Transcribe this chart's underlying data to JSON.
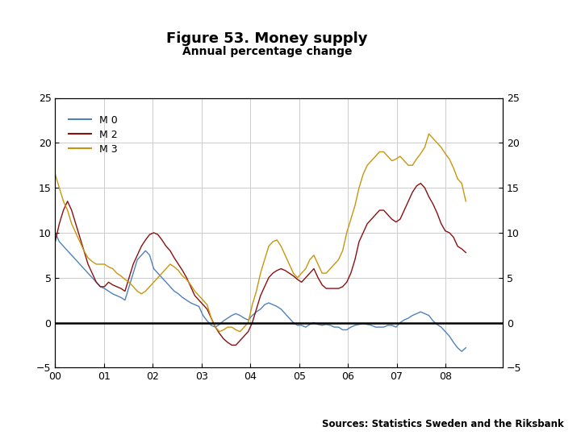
{
  "title": "Figure 53. Money supply",
  "subtitle": "Annual percentage change",
  "source_text": "Sources: Statistics Sweden and the Riksbank",
  "legend": [
    "M 0",
    "M 2",
    "M 3"
  ],
  "colors": {
    "M0": "#4f81bd",
    "M2": "#8B1010",
    "M3": "#C8960C"
  },
  "xlim_start": 2000.0,
  "xlim_end": 2009.17,
  "ylim": [
    -5,
    25
  ],
  "yticks": [
    -5,
    0,
    5,
    10,
    15,
    20,
    25
  ],
  "xtick_labels": [
    "00",
    "01",
    "02",
    "03",
    "04",
    "05",
    "06",
    "07",
    "08"
  ],
  "xtick_positions": [
    2000.0,
    2001.0,
    2002.0,
    2003.0,
    2004.0,
    2005.0,
    2006.0,
    2007.0,
    2008.0
  ],
  "footer_bar_color": "#1a3f7a",
  "logo_color": "#1a3f7a",
  "M0": [
    10.0,
    9.0,
    8.5,
    8.0,
    7.5,
    7.0,
    6.5,
    6.0,
    5.5,
    5.0,
    4.5,
    4.0,
    3.8,
    3.5,
    3.2,
    3.0,
    2.8,
    2.5,
    4.0,
    5.5,
    7.0,
    7.5,
    8.0,
    7.5,
    6.0,
    5.5,
    5.0,
    4.5,
    4.0,
    3.5,
    3.2,
    2.8,
    2.5,
    2.2,
    2.0,
    1.8,
    0.8,
    0.2,
    -0.3,
    -0.5,
    -0.2,
    0.2,
    0.5,
    0.8,
    1.0,
    0.8,
    0.5,
    0.3,
    0.8,
    1.2,
    1.5,
    2.0,
    2.2,
    2.0,
    1.8,
    1.5,
    1.0,
    0.5,
    0.0,
    -0.3,
    -0.3,
    -0.5,
    -0.2,
    0.0,
    -0.2,
    -0.3,
    -0.2,
    -0.3,
    -0.5,
    -0.5,
    -0.8,
    -0.8,
    -0.5,
    -0.3,
    -0.2,
    -0.1,
    -0.2,
    -0.3,
    -0.5,
    -0.5,
    -0.5,
    -0.3,
    -0.3,
    -0.5,
    0.0,
    0.3,
    0.5,
    0.8,
    1.0,
    1.2,
    1.0,
    0.8,
    0.2,
    -0.2,
    -0.5,
    -1.0,
    -1.5,
    -2.2,
    -2.8,
    -3.2,
    -2.8
  ],
  "M2": [
    9.0,
    11.0,
    12.5,
    13.5,
    12.5,
    11.0,
    9.5,
    8.0,
    6.5,
    5.5,
    4.5,
    4.0,
    4.0,
    4.5,
    4.2,
    4.0,
    3.8,
    3.5,
    5.0,
    6.5,
    7.5,
    8.5,
    9.2,
    9.8,
    10.0,
    9.8,
    9.2,
    8.5,
    8.0,
    7.2,
    6.5,
    5.8,
    5.0,
    4.0,
    3.0,
    2.5,
    2.0,
    1.5,
    0.5,
    -0.5,
    -1.2,
    -1.8,
    -2.2,
    -2.5,
    -2.5,
    -2.0,
    -1.5,
    -1.0,
    0.0,
    1.5,
    3.0,
    4.0,
    5.0,
    5.5,
    5.8,
    6.0,
    5.8,
    5.5,
    5.2,
    4.8,
    4.5,
    5.0,
    5.5,
    6.0,
    5.0,
    4.2,
    3.8,
    3.8,
    3.8,
    3.8,
    4.0,
    4.5,
    5.5,
    7.0,
    9.0,
    10.0,
    11.0,
    11.5,
    12.0,
    12.5,
    12.5,
    12.0,
    11.5,
    11.2,
    11.5,
    12.5,
    13.5,
    14.5,
    15.2,
    15.5,
    15.0,
    14.0,
    13.2,
    12.2,
    11.0,
    10.2,
    10.0,
    9.5,
    8.5,
    8.2,
    7.8
  ],
  "M3": [
    16.5,
    15.0,
    13.5,
    12.5,
    11.0,
    10.0,
    9.0,
    8.0,
    7.2,
    6.8,
    6.5,
    6.5,
    6.5,
    6.2,
    6.0,
    5.5,
    5.2,
    4.8,
    4.5,
    4.0,
    3.5,
    3.2,
    3.5,
    4.0,
    4.5,
    5.0,
    5.5,
    6.0,
    6.5,
    6.2,
    5.8,
    5.2,
    4.8,
    4.2,
    3.5,
    3.0,
    2.5,
    2.0,
    0.5,
    -0.5,
    -1.0,
    -0.8,
    -0.5,
    -0.5,
    -0.8,
    -1.0,
    -0.5,
    0.0,
    2.0,
    3.5,
    5.5,
    7.0,
    8.5,
    9.0,
    9.2,
    8.5,
    7.5,
    6.5,
    5.5,
    5.0,
    5.5,
    6.0,
    7.0,
    7.5,
    6.5,
    5.5,
    5.5,
    6.0,
    6.5,
    7.0,
    8.0,
    10.0,
    11.5,
    13.0,
    15.0,
    16.5,
    17.5,
    18.0,
    18.5,
    19.0,
    19.0,
    18.5,
    18.0,
    18.2,
    18.5,
    18.0,
    17.5,
    17.5,
    18.2,
    18.8,
    19.5,
    21.0,
    20.5,
    20.0,
    19.5,
    18.8,
    18.2,
    17.2,
    16.0,
    15.5,
    13.5
  ]
}
